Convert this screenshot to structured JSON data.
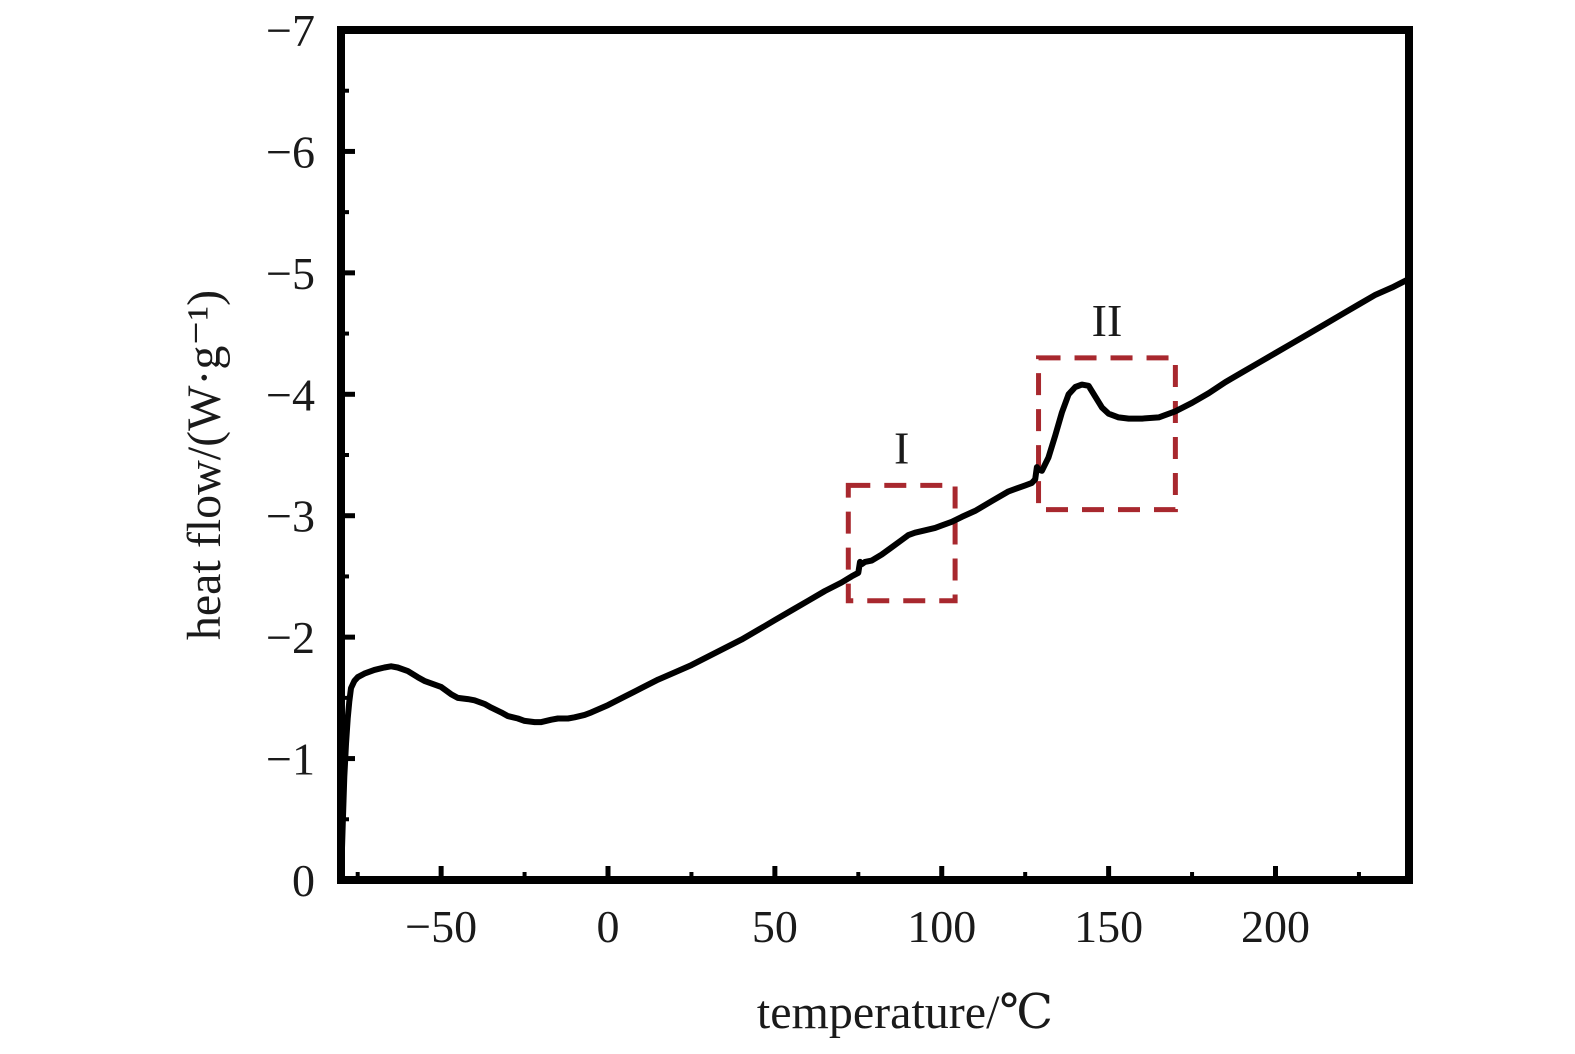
{
  "chart_data": {
    "type": "line",
    "title": "",
    "xlabel": "temperature/℃",
    "ylabel": "heat flow/(W·g⁻¹)",
    "xlim": [
      -80,
      240
    ],
    "ylim": [
      0,
      -7
    ],
    "y_axis_inverted": true,
    "grid": false,
    "legend": "none",
    "x_major_ticks": [
      -50,
      0,
      50,
      100,
      150,
      200
    ],
    "x_tick_labels": [
      "−50",
      "0",
      "50",
      "100",
      "150",
      "200"
    ],
    "x_minor_ticks": [
      -75,
      -25,
      25,
      75,
      125,
      175,
      225
    ],
    "y_major_ticks": [
      0,
      -1,
      -2,
      -3,
      -4,
      -5,
      -6,
      -7
    ],
    "y_tick_labels": [
      "0",
      "−1",
      "−2",
      "−3",
      "−4",
      "−5",
      "−6",
      "−7"
    ],
    "y_minor_ticks": [
      -0.5,
      -1.5,
      -2.5,
      -3.5,
      -4.5,
      -5.5,
      -6.5
    ],
    "line_color": "#000000",
    "annotation_color": "#a8282e",
    "series": [
      {
        "x": [
          -80,
          -79.5,
          -79,
          -78.5,
          -78,
          -77.5,
          -77,
          -76,
          -75,
          -73,
          -70,
          -67,
          -65,
          -63,
          -60,
          -57,
          -55,
          -50,
          -47,
          -45,
          -42,
          -40,
          -37,
          -35,
          -32,
          -30,
          -27,
          -25,
          -22,
          -20,
          -17,
          -15,
          -12,
          -10,
          -7,
          -5,
          0,
          5,
          10,
          15,
          20,
          25,
          30,
          35,
          40,
          45,
          50,
          55,
          60,
          65,
          70,
          73,
          75,
          75.5,
          76,
          77,
          79,
          82,
          85,
          88,
          90,
          92,
          95,
          98,
          100,
          103,
          106,
          110,
          115,
          120,
          125,
          127,
          128,
          128.3,
          128.5,
          129,
          130,
          132,
          134,
          136,
          138,
          140,
          142,
          144,
          146,
          148,
          150,
          153,
          156,
          160,
          165,
          170,
          175,
          180,
          185,
          190,
          195,
          200,
          205,
          210,
          215,
          220,
          225,
          230,
          235,
          240
        ],
        "y": [
          0,
          -0.45,
          -0.85,
          -1.12,
          -1.33,
          -1.47,
          -1.58,
          -1.64,
          -1.67,
          -1.7,
          -1.73,
          -1.75,
          -1.76,
          -1.75,
          -1.72,
          -1.67,
          -1.64,
          -1.59,
          -1.53,
          -1.5,
          -1.49,
          -1.48,
          -1.45,
          -1.42,
          -1.38,
          -1.35,
          -1.33,
          -1.31,
          -1.3,
          -1.3,
          -1.32,
          -1.33,
          -1.33,
          -1.34,
          -1.36,
          -1.38,
          -1.44,
          -1.51,
          -1.58,
          -1.65,
          -1.71,
          -1.77,
          -1.84,
          -1.91,
          -1.98,
          -2.06,
          -2.14,
          -2.22,
          -2.3,
          -2.38,
          -2.45,
          -2.5,
          -2.53,
          -2.62,
          -2.6,
          -2.62,
          -2.63,
          -2.68,
          -2.74,
          -2.8,
          -2.84,
          -2.86,
          -2.88,
          -2.9,
          -2.92,
          -2.95,
          -2.99,
          -3.04,
          -3.12,
          -3.2,
          -3.25,
          -3.27,
          -3.3,
          -3.36,
          -3.4,
          -3.38,
          -3.37,
          -3.48,
          -3.66,
          -3.85,
          -4.0,
          -4.06,
          -4.08,
          -4.07,
          -3.98,
          -3.89,
          -3.84,
          -3.81,
          -3.8,
          -3.8,
          -3.81,
          -3.86,
          -3.93,
          -4.01,
          -4.1,
          -4.18,
          -4.26,
          -4.34,
          -4.42,
          -4.5,
          -4.58,
          -4.66,
          -4.74,
          -4.82,
          -4.88,
          -4.95
        ]
      }
    ],
    "annotations": [
      {
        "label": "I",
        "box_x": [
          72,
          104
        ],
        "box_y": [
          -2.3,
          -3.25
        ]
      },
      {
        "label": "II",
        "box_x": [
          129,
          170
        ],
        "box_y": [
          -3.05,
          -4.3
        ]
      }
    ]
  }
}
